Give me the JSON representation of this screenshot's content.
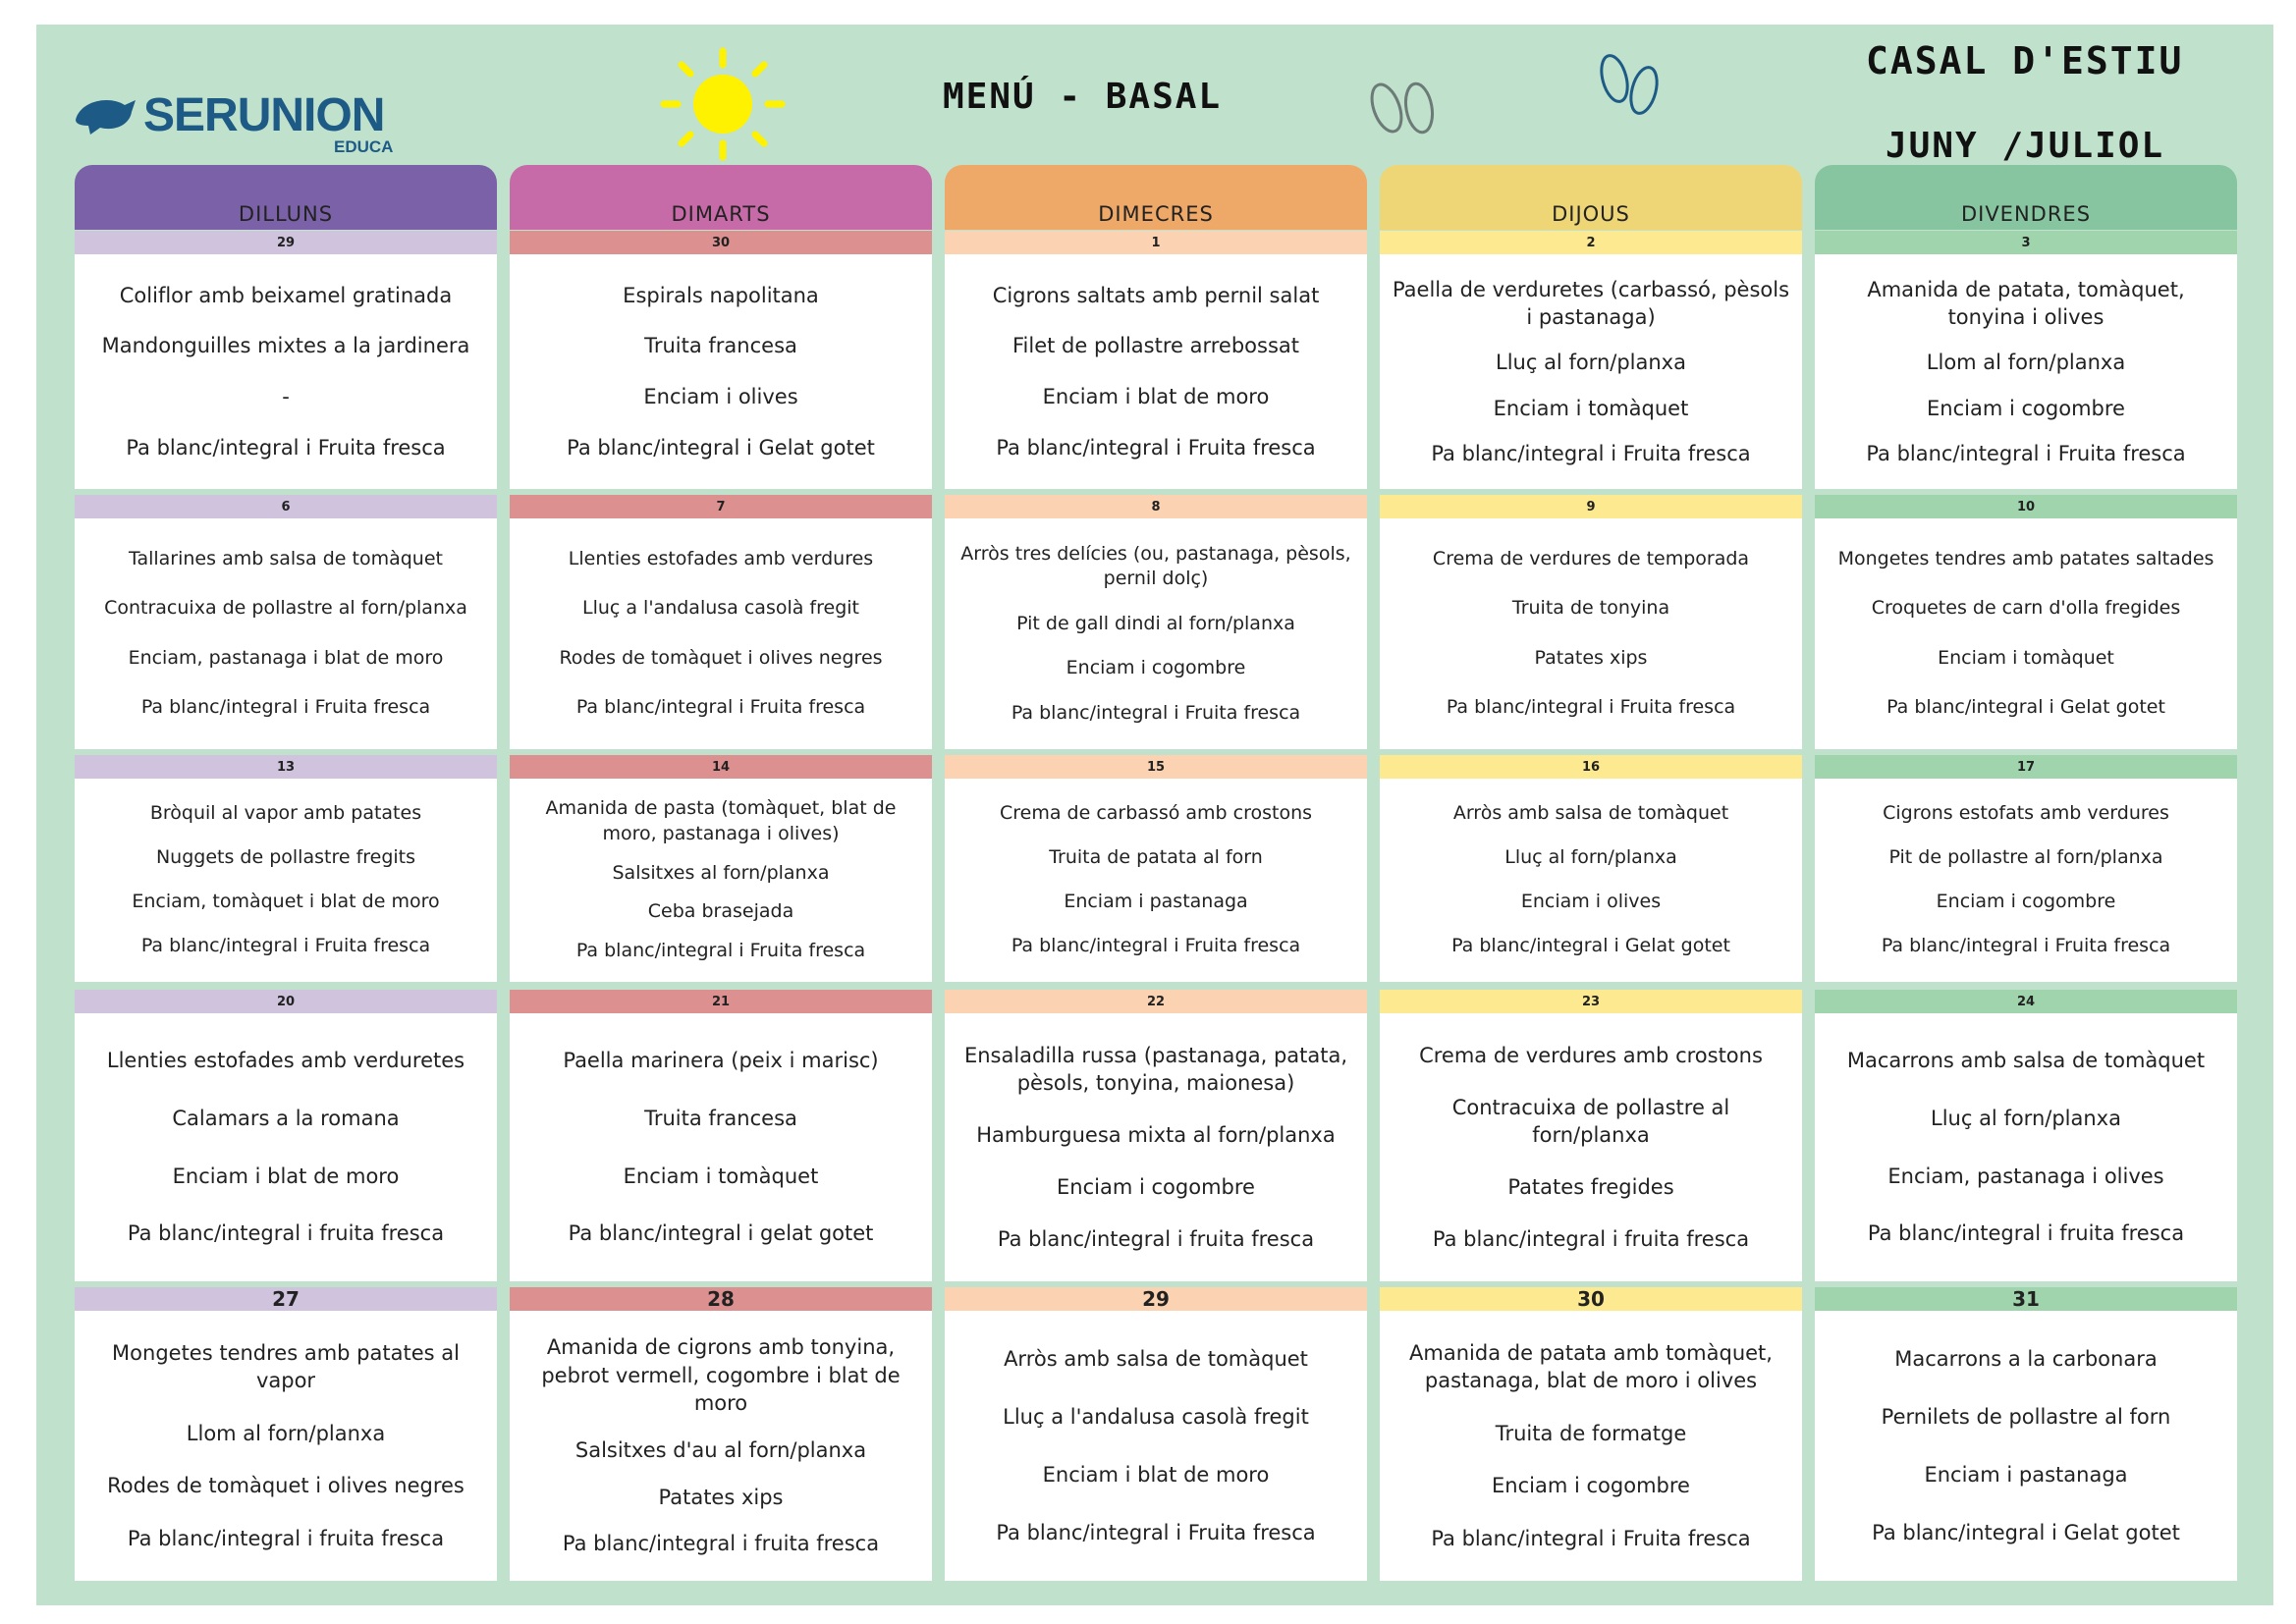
{
  "header": {
    "logo": "SERUNION",
    "logo_sub": "EDUCA",
    "title": "MENÚ - BASAL",
    "event": "CASAL D'ESTIU",
    "period": "JUNY /JULIOL"
  },
  "days": [
    "DILLUNS",
    "DIMARTS",
    "DIMECRES",
    "DIJOUS",
    "DIVENDRES"
  ],
  "weeks": [
    {
      "cells": [
        {
          "date": "29",
          "dishes": [
            "Coliflor amb beixamel gratinada",
            "Mandonguilles mixtes a la jardinera",
            "-",
            "Pa blanc/integral i Fruita fresca"
          ]
        },
        {
          "date": "30",
          "dishes": [
            "Espirals napolitana",
            "Truita francesa",
            "Enciam i olives",
            "Pa blanc/integral i Gelat gotet"
          ]
        },
        {
          "date": "1",
          "dishes": [
            "Cigrons saltats amb pernil salat",
            "Filet de pollastre arrebossat",
            "Enciam i blat de moro",
            "Pa blanc/integral i Fruita fresca"
          ]
        },
        {
          "date": "2",
          "dishes": [
            "Paella de verduretes (carbassó, pèsols i pastanaga)",
            "Lluç al forn/planxa",
            "Enciam i tomàquet",
            "Pa blanc/integral i Fruita fresca"
          ]
        },
        {
          "date": "3",
          "dishes": [
            "Amanida de patata, tomàquet, tonyina i olives",
            "Llom al forn/planxa",
            "Enciam i cogombre",
            "Pa blanc/integral i Fruita fresca"
          ]
        }
      ]
    },
    {
      "cells": [
        {
          "date": "6",
          "dishes": [
            "Tallarines amb salsa de tomàquet",
            "Contracuixa de pollastre al forn/planxa",
            "Enciam, pastanaga i blat de moro",
            "Pa blanc/integral i Fruita fresca"
          ]
        },
        {
          "date": "7",
          "dishes": [
            "Llenties estofades amb verdures",
            "Lluç a l'andalusa casolà fregit",
            "Rodes de tomàquet i olives negres",
            "Pa blanc/integral i Fruita fresca"
          ]
        },
        {
          "date": "8",
          "dishes": [
            "Arròs tres delícies (ou, pastanaga, pèsols, pernil dolç)",
            "Pit de gall dindi al forn/planxa",
            "Enciam i cogombre",
            "Pa blanc/integral i Fruita fresca"
          ]
        },
        {
          "date": "9",
          "dishes": [
            "Crema de verdures de temporada",
            "Truita de tonyina",
            "Patates xips",
            "Pa blanc/integral i Fruita fresca"
          ]
        },
        {
          "date": "10",
          "dishes": [
            "Mongetes tendres amb patates saltades",
            "Croquetes de carn d'olla fregides",
            "Enciam i tomàquet",
            "Pa blanc/integral i Gelat gotet"
          ]
        }
      ]
    },
    {
      "cells": [
        {
          "date": "13",
          "dishes": [
            "Bròquil al vapor amb patates",
            "Nuggets de pollastre fregits",
            "Enciam, tomàquet i blat de moro",
            "Pa blanc/integral i Fruita fresca"
          ]
        },
        {
          "date": "14",
          "dishes": [
            "Amanida de pasta (tomàquet, blat de moro, pastanaga i olives)",
            "Salsitxes al forn/planxa",
            "Ceba brasejada",
            "Pa blanc/integral i Fruita fresca"
          ]
        },
        {
          "date": "15",
          "dishes": [
            "Crema de carbassó amb crostons",
            "Truita de patata al forn",
            "Enciam i pastanaga",
            "Pa blanc/integral i Fruita fresca"
          ]
        },
        {
          "date": "16",
          "dishes": [
            "Arròs amb salsa de tomàquet",
            "Lluç al forn/planxa",
            "Enciam i olives",
            "Pa blanc/integral i Gelat gotet"
          ]
        },
        {
          "date": "17",
          "dishes": [
            "Cigrons estofats amb verdures",
            "Pit de pollastre al forn/planxa",
            "Enciam i cogombre",
            "Pa blanc/integral i Fruita fresca"
          ]
        }
      ]
    },
    {
      "cells": [
        {
          "date": "20",
          "dishes": [
            "Llenties estofades amb verduretes",
            "Calamars a la romana",
            "Enciam i blat de moro",
            "Pa blanc/integral i fruita fresca"
          ]
        },
        {
          "date": "21",
          "dishes": [
            "Paella marinera (peix i marisc)",
            "Truita francesa",
            "Enciam i tomàquet",
            "Pa blanc/integral i gelat gotet"
          ]
        },
        {
          "date": "22",
          "dishes": [
            "Ensaladilla russa (pastanaga, patata, pèsols, tonyina, maionesa)",
            "Hamburguesa mixta al forn/planxa",
            "Enciam i cogombre",
            "Pa blanc/integral i fruita fresca"
          ]
        },
        {
          "date": "23",
          "dishes": [
            "Crema de verdures amb crostons",
            "Contracuixa de pollastre al forn/planxa",
            "Patates fregides",
            "Pa blanc/integral i fruita fresca"
          ]
        },
        {
          "date": "24",
          "dishes": [
            "Macarrons amb salsa de tomàquet",
            "Lluç al forn/planxa",
            "Enciam, pastanaga i olives",
            "Pa blanc/integral i fruita fresca"
          ]
        }
      ]
    },
    {
      "cells": [
        {
          "date": "27",
          "dishes": [
            "Mongetes tendres amb patates al vapor",
            "Llom al forn/planxa",
            "Rodes de tomàquet i olives negres",
            "Pa blanc/integral i fruita fresca"
          ]
        },
        {
          "date": "28",
          "dishes": [
            "Amanida de cigrons amb tonyina, pebrot vermell, cogombre i blat de moro",
            "Salsitxes d'au al forn/planxa",
            "Patates xips",
            "Pa blanc/integral i fruita fresca"
          ]
        },
        {
          "date": "29",
          "dishes": [
            "Arròs amb salsa de tomàquet",
            "Lluç a l'andalusa casolà fregit",
            "Enciam i blat de moro",
            "Pa blanc/integral i Fruita fresca"
          ]
        },
        {
          "date": "30",
          "dishes": [
            "Amanida de patata amb tomàquet, pastanaga, blat de moro i olives",
            "Truita de formatge",
            "Enciam i cogombre",
            "Pa blanc/integral i Fruita fresca"
          ]
        },
        {
          "date": "31",
          "dishes": [
            "Macarrons a la carbonara",
            "Pernilets de pollastre al forn",
            "Enciam i pastanaga",
            "Pa blanc/integral i Gelat gotet"
          ]
        }
      ]
    }
  ]
}
